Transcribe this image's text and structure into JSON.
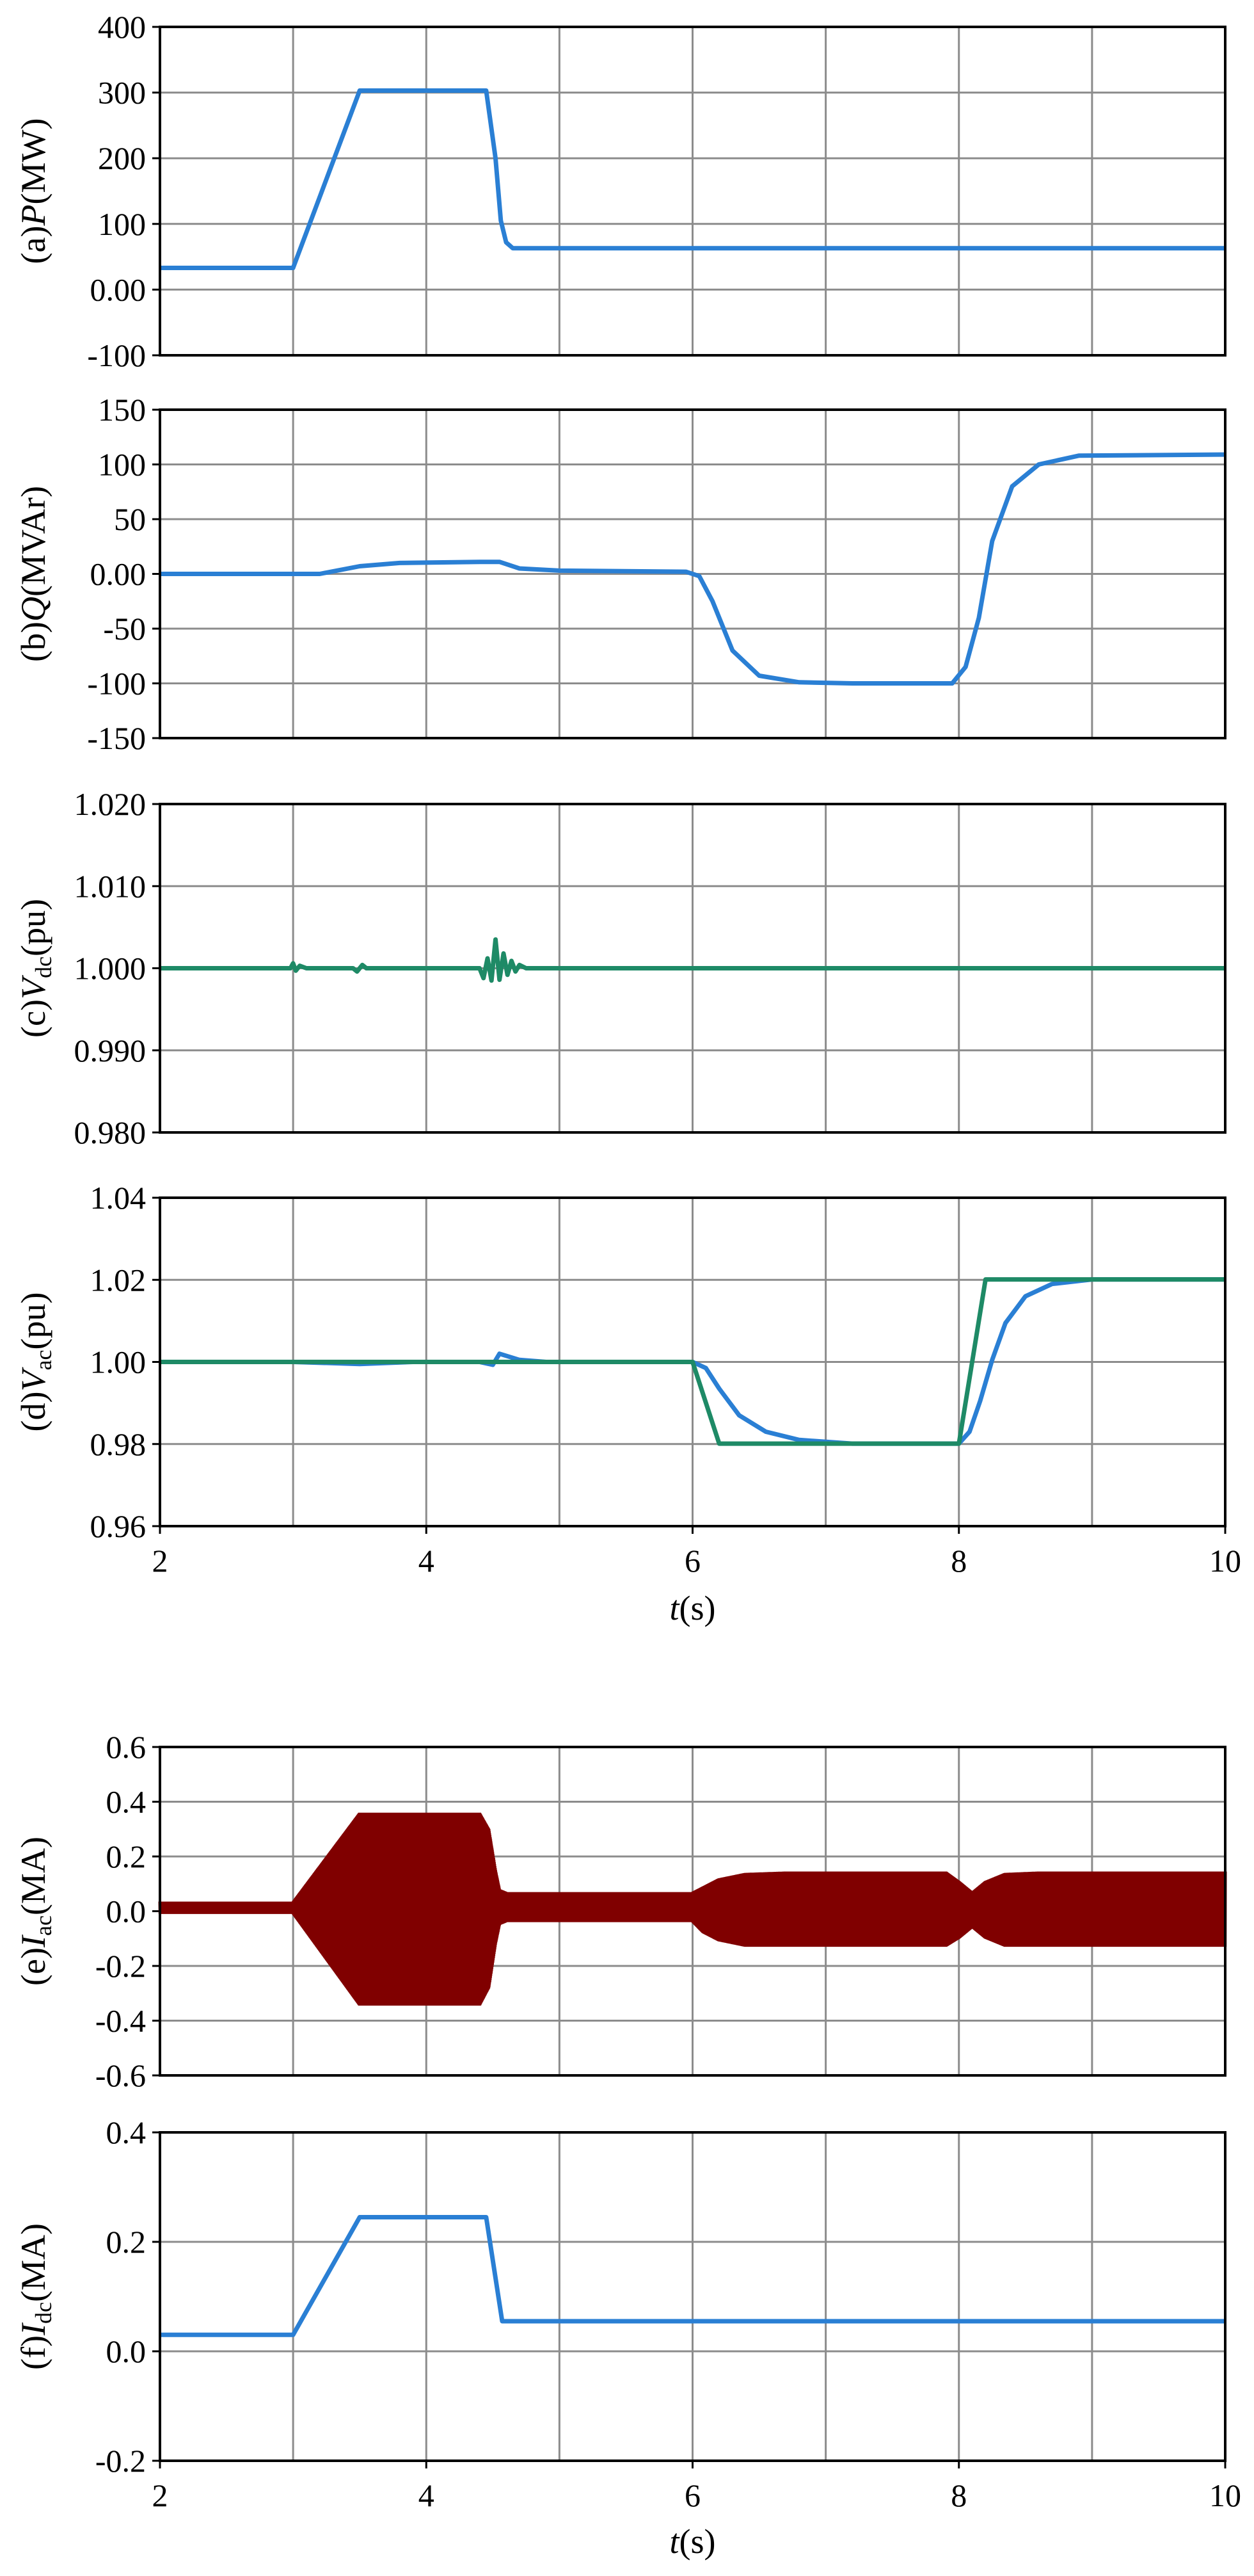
{
  "colors": {
    "blue": "#2a7fd4",
    "green": "#1e8a66",
    "darkred": "#800000",
    "grid": "#8c8c8c",
    "axis": "#000000"
  },
  "chart_data": [
    {
      "id": "a",
      "type": "line",
      "ylabel": {
        "prefix": "(a)",
        "var": "P",
        "sub": "",
        "unit": "(MW)"
      },
      "xlabel": "",
      "xlim": [
        2,
        10
      ],
      "xticks": [],
      "ylim": [
        -100,
        400
      ],
      "yticks": [
        "-100",
        "0.00",
        "100",
        "200",
        "300",
        "400"
      ],
      "series": [
        {
          "color": "blue",
          "x": [
            2,
            3,
            3.5,
            4.45,
            4.52,
            4.56,
            4.6,
            4.65,
            10
          ],
          "y": [
            33,
            33,
            303,
            303,
            200,
            105,
            72,
            63,
            63
          ]
        }
      ]
    },
    {
      "id": "b",
      "type": "line",
      "ylabel": {
        "prefix": "(b)",
        "var": "Q",
        "sub": "",
        "unit": "(MVAr)"
      },
      "xlabel": "",
      "xlim": [
        2,
        10
      ],
      "xticks": [],
      "ylim": [
        -150,
        150
      ],
      "yticks": [
        "-150",
        "-100",
        "-50",
        "0.00",
        "50",
        "100",
        "150"
      ],
      "series": [
        {
          "color": "blue",
          "x": [
            2,
            3.2,
            3.5,
            3.8,
            4.4,
            4.55,
            4.7,
            5.0,
            5.95,
            6.05,
            6.15,
            6.3,
            6.5,
            6.8,
            7.2,
            7.95,
            8.05,
            8.15,
            8.25,
            8.4,
            8.6,
            8.9,
            10
          ],
          "y": [
            0,
            0,
            7,
            10,
            11,
            11,
            5,
            3,
            2,
            -2,
            -25,
            -70,
            -93,
            -99,
            -100,
            -100,
            -85,
            -40,
            30,
            80,
            100,
            108,
            109
          ]
        }
      ]
    },
    {
      "id": "c",
      "type": "line",
      "ylabel": {
        "prefix": "(c)",
        "var": "V",
        "sub": "dc",
        "unit": "(pu)"
      },
      "xlabel": "",
      "xlim": [
        2,
        10
      ],
      "xticks": [],
      "ylim": [
        0.98,
        1.02
      ],
      "yticks": [
        "0.980",
        "0.990",
        "1.000",
        "1.010",
        "1.020"
      ],
      "series": [
        {
          "color": "green",
          "x": [
            2,
            2.98,
            3.0,
            3.02,
            3.05,
            3.1,
            3.45,
            3.48,
            3.52,
            3.55,
            4.4,
            4.43,
            4.46,
            4.49,
            4.52,
            4.55,
            4.58,
            4.61,
            4.64,
            4.67,
            4.7,
            4.75,
            10
          ],
          "y": [
            1.0,
            1.0,
            1.0006,
            0.9997,
            1.0003,
            1.0,
            1.0,
            0.9996,
            1.0004,
            1.0,
            1.0,
            0.9988,
            1.0012,
            0.9985,
            1.0035,
            0.9986,
            1.0018,
            0.9992,
            1.0009,
            0.9996,
            1.0004,
            1.0,
            1.0
          ]
        }
      ]
    },
    {
      "id": "d",
      "type": "line",
      "ylabel": {
        "prefix": "(d)",
        "var": "V",
        "sub": "ac",
        "unit": "(pu)"
      },
      "xlabel": "",
      "xlim": [
        2,
        10
      ],
      "xticks": [],
      "ylim": [
        0.96,
        1.04
      ],
      "yticks": [
        "0.96",
        "0.98",
        "1.00",
        "1.02",
        "1.04"
      ],
      "series": [
        {
          "color": "blue",
          "x": [
            2,
            3.0,
            3.5,
            3.9,
            4.4,
            4.5,
            4.55,
            4.7,
            4.9,
            6.0,
            6.1,
            6.2,
            6.35,
            6.55,
            6.8,
            7.2,
            8.0,
            8.08,
            8.16,
            8.25,
            8.35,
            8.5,
            8.7,
            9.0,
            10
          ],
          "y": [
            1.0,
            1.0,
            0.9995,
            1.0,
            1.0,
            0.9993,
            1.002,
            1.0005,
            1.0,
            1.0,
            0.9985,
            0.9935,
            0.987,
            0.983,
            0.981,
            0.9801,
            0.9801,
            0.983,
            0.9905,
            1.0005,
            1.0095,
            1.016,
            1.019,
            1.0201,
            1.0201
          ]
        },
        {
          "color": "green",
          "x": [
            2,
            6.0,
            6.2,
            8.0,
            8.2,
            10
          ],
          "y": [
            1.0,
            1.0,
            0.9801,
            0.9801,
            1.0201,
            1.0201
          ]
        }
      ]
    },
    {
      "id": "e",
      "type": "area",
      "ylabel": {
        "prefix": "(e)",
        "var": "I",
        "sub": "ac",
        "unit": "(MA)"
      },
      "xlabel": "",
      "xlim": [
        2,
        10
      ],
      "xticks": [],
      "ylim": [
        -0.6,
        0.6
      ],
      "yticks": [
        "-0.6",
        "-0.4",
        "-0.2",
        "0.0",
        "0.2",
        "0.4",
        "0.6"
      ],
      "series": [
        {
          "color": "darkred",
          "x": [
            2,
            3.0,
            3.5,
            4.4,
            4.47,
            4.52,
            4.55,
            4.6,
            6.0,
            6.08,
            6.2,
            6.4,
            6.7,
            7.9,
            8.0,
            8.1,
            8.2,
            8.35,
            8.6,
            10
          ],
          "upper": [
            0.035,
            0.035,
            0.36,
            0.36,
            0.3,
            0.15,
            0.08,
            0.07,
            0.07,
            0.09,
            0.12,
            0.14,
            0.145,
            0.145,
            0.11,
            0.07,
            0.11,
            0.14,
            0.145,
            0.145
          ],
          "lower": [
            -0.01,
            -0.01,
            -0.345,
            -0.345,
            -0.28,
            -0.12,
            -0.05,
            -0.04,
            -0.04,
            -0.08,
            -0.11,
            -0.13,
            -0.13,
            -0.13,
            -0.1,
            -0.06,
            -0.1,
            -0.13,
            -0.13,
            -0.13
          ]
        }
      ]
    },
    {
      "id": "f",
      "type": "line",
      "ylabel": {
        "prefix": "(f)",
        "var": "I",
        "sub": "dc",
        "unit": "(MA)"
      },
      "xlabel": "",
      "xlim": [
        2,
        10
      ],
      "xticks": [],
      "ylim": [
        -0.2,
        0.4
      ],
      "yticks": [
        "-0.2",
        "0.0",
        "0.2",
        "0.4"
      ],
      "series": [
        {
          "color": "blue",
          "x": [
            2,
            3.0,
            3.5,
            4.45,
            4.57,
            10
          ],
          "y": [
            0.03,
            0.03,
            0.245,
            0.245,
            0.055,
            0.055
          ]
        }
      ]
    }
  ],
  "shared_x": [
    {
      "ticks": [
        "2",
        "4",
        "6",
        "8",
        "10"
      ],
      "label_var": "t",
      "label_unit": "(s)"
    },
    {
      "ticks": [
        "2",
        "4",
        "6",
        "8",
        "10"
      ],
      "label_var": "t",
      "label_unit": "(s)"
    }
  ]
}
